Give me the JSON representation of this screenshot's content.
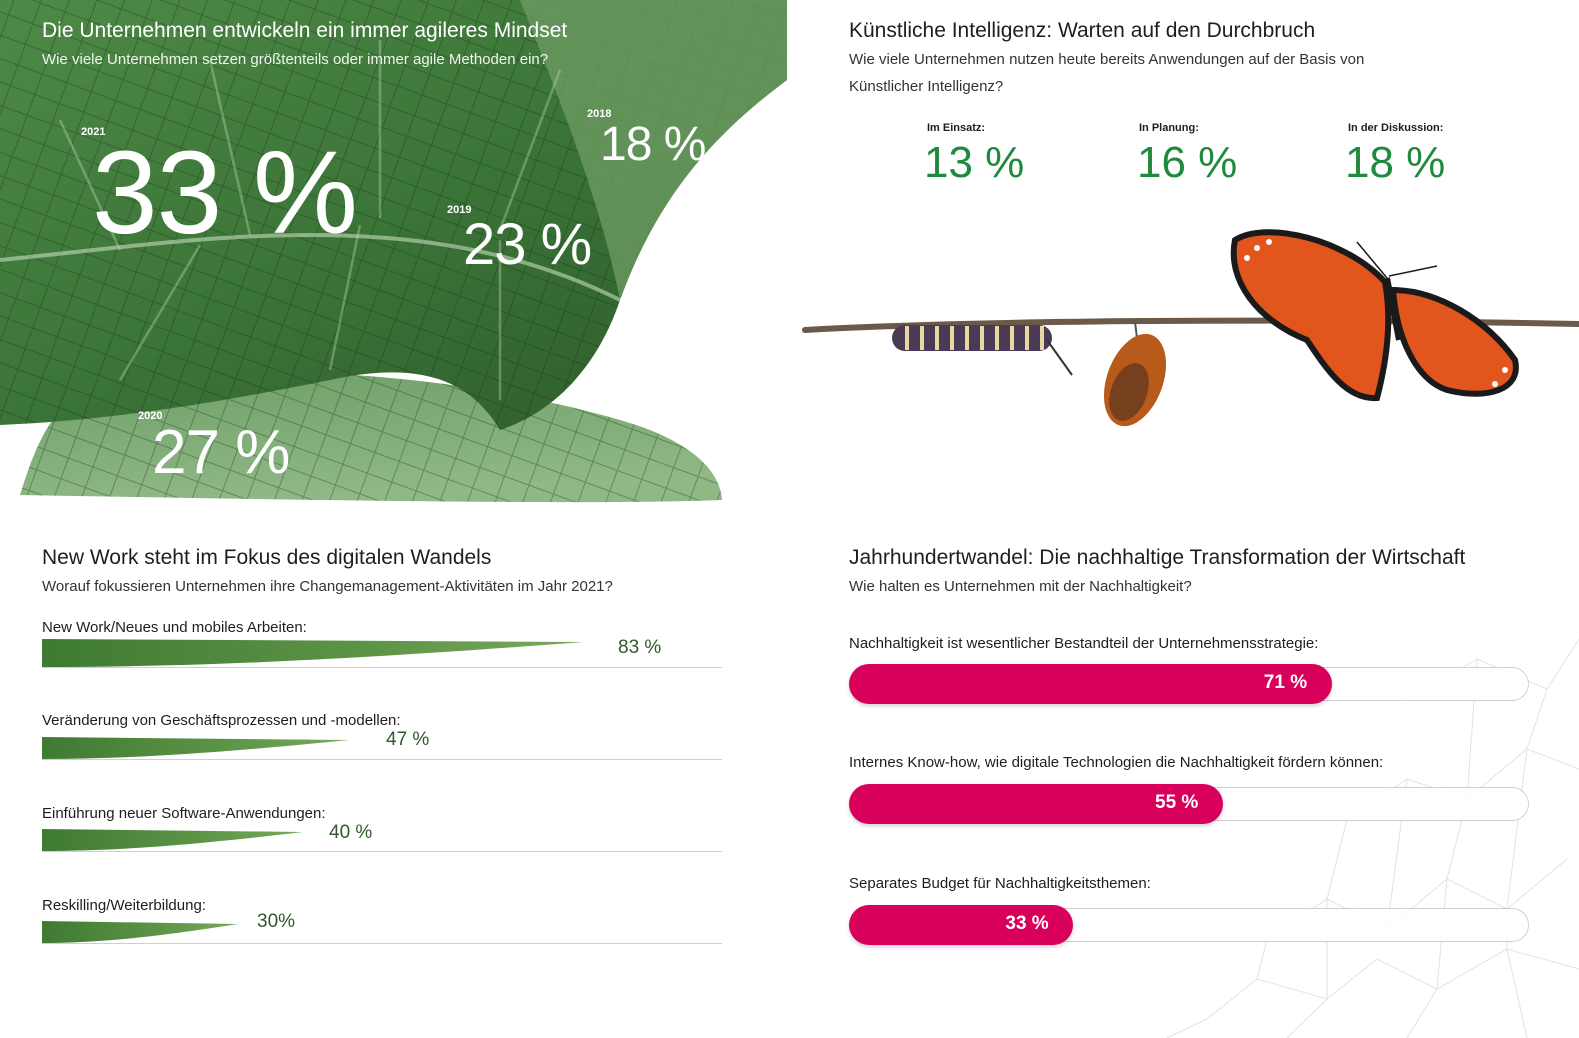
{
  "colors": {
    "leaf": "#3f7a3c",
    "ki_value": "#1f8a3e",
    "bar_pink": "#d9005b",
    "newwork_value": "#2f5a2a"
  },
  "agile": {
    "title": "Die Unternehmen entwickeln ein immer agileres Mindset",
    "subtitle": "Wie viele Unternehmen setzen größtenteils oder immer agile Methoden ein?",
    "chart_data": {
      "type": "table",
      "categories": [
        "2021",
        "2018",
        "2019",
        "2020"
      ],
      "values": [
        33,
        18,
        23,
        27
      ],
      "labels": [
        "33 %",
        "18 %",
        "23 %",
        "27 %"
      ],
      "unit": "%"
    }
  },
  "ki": {
    "title": "Künstliche Intelligenz: Warten auf den Durchbruch",
    "subtitle": "Wie viele Unternehmen nutzen heute bereits Anwendungen auf der Basis von Künstlicher Intelligenz?",
    "chart_data": {
      "type": "table",
      "categories": [
        "Im Einsatz:",
        "In Planung:",
        "In der Diskussion:"
      ],
      "values": [
        13,
        16,
        18
      ],
      "labels": [
        "13 %",
        "16 %",
        "18 %"
      ],
      "unit": "%"
    }
  },
  "newwork": {
    "title": "New Work steht im Fokus des digitalen Wandels",
    "subtitle": "Worauf fokussieren Unternehmen ihre Changemanagement-Aktivitäten im Jahr 2021?",
    "chart_data": {
      "type": "bar",
      "categories": [
        "New Work/Neues und mobiles Arbeiten:",
        "Veränderung von Geschäftsprozessen und -modellen:",
        "Einführung neuer Software-Anwendungen:",
        "Reskilling/Weiterbildung:"
      ],
      "values": [
        83,
        47,
        40,
        30
      ],
      "labels": [
        "83 %",
        "47 %",
        "40 %",
        "30%"
      ],
      "unit": "%"
    }
  },
  "nachhaltig": {
    "title": "Jahrhundertwandel: Die nachhaltige Transformation der Wirtschaft",
    "subtitle": "Wie halten es Unternehmen mit der Nachhaltigkeit?",
    "chart_data": {
      "type": "bar",
      "categories": [
        "Nachhaltigkeit ist wesentlicher Bestandteil der Unternehmensstrategie:",
        "Internes Know-how, wie digitale Technologien die Nachhaltigkeit fördern können:",
        "Separates Budget für Nachhaltigkeitsthemen:"
      ],
      "values": [
        71,
        55,
        33
      ],
      "labels": [
        "71 %",
        "55 %",
        "33 %"
      ],
      "unit": "%",
      "ylim": [
        0,
        100
      ]
    }
  }
}
